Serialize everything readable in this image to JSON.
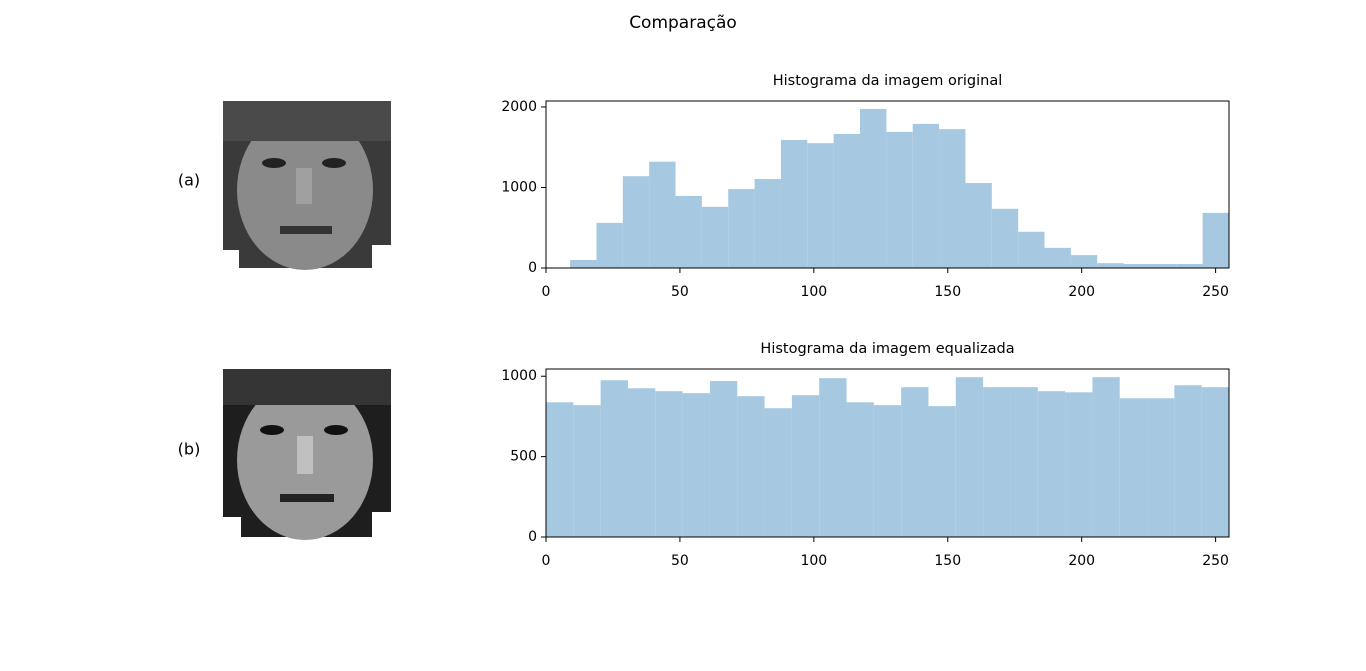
{
  "figure": {
    "title": "Comparação",
    "panel_labels": [
      "(a)",
      "(b)"
    ]
  },
  "chart_data": [
    {
      "type": "histogram",
      "title": "Histograma da imagem original",
      "color": "#a6c8e0",
      "bins": [
        9,
        18.84,
        28.68,
        38.52,
        48.36,
        58.2,
        68.04,
        77.88,
        87.72,
        97.56,
        107.4,
        117.24,
        127.08,
        136.92,
        146.76,
        156.6,
        166.44,
        176.28,
        186.12,
        195.96,
        205.8,
        215.64,
        225.48,
        235.32,
        245.16,
        255
      ],
      "values": [
        100,
        560,
        1140,
        1320,
        895,
        760,
        980,
        1105,
        1590,
        1550,
        1665,
        1975,
        1690,
        1790,
        1725,
        1055,
        735,
        450,
        250,
        160,
        60,
        50,
        50,
        50,
        685
      ],
      "xlim": [
        0,
        255
      ],
      "ylim": [
        0,
        2074
      ],
      "xticks": [
        0,
        50,
        100,
        150,
        200,
        250
      ],
      "yticks": [
        0,
        1000,
        2000
      ]
    },
    {
      "type": "histogram",
      "title": "Histograma da imagem equalizada",
      "color": "#a6c8e0",
      "bins": [
        0,
        10.2,
        20.4,
        30.6,
        40.8,
        51,
        61.2,
        71.4,
        81.6,
        91.8,
        102,
        112.2,
        122.4,
        132.6,
        142.8,
        153,
        163.2,
        173.4,
        183.6,
        193.8,
        204,
        214.2,
        224.4,
        234.6,
        244.8,
        255
      ],
      "values": [
        838,
        820,
        975,
        925,
        907,
        895,
        970,
        876,
        801,
        882,
        988,
        838,
        820,
        932,
        814,
        994,
        932,
        932,
        907,
        900,
        994,
        863,
        863,
        944,
        932
      ],
      "xlim": [
        0,
        255
      ],
      "ylim": [
        0,
        1045
      ],
      "xticks": [
        0,
        50,
        100,
        150,
        200,
        250
      ],
      "yticks": [
        0,
        500,
        1000
      ]
    }
  ]
}
